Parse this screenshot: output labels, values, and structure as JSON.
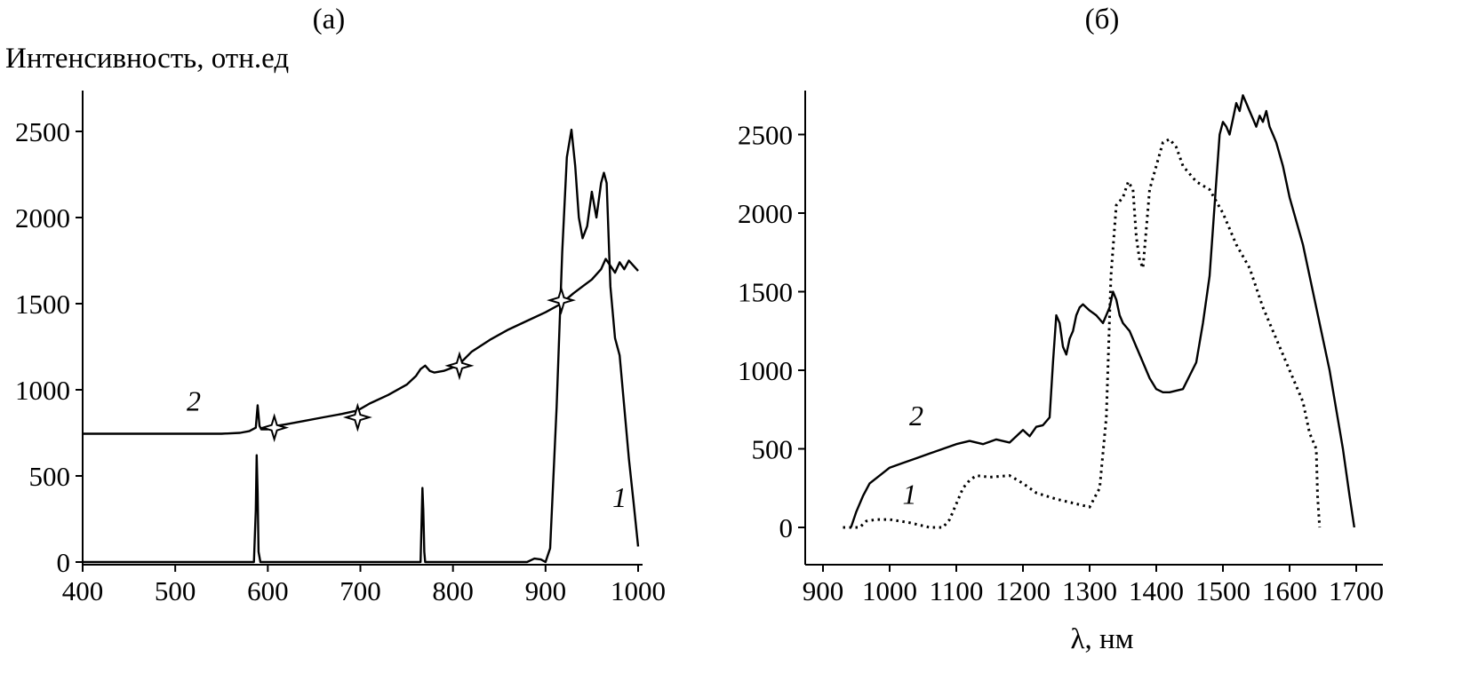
{
  "chart_data": [
    {
      "type": "line",
      "panel_label": "(а)",
      "ylabel": "Интенсивность, отн.ед",
      "xlabel": "",
      "xlim": [
        400,
        1000
      ],
      "ylim": [
        0,
        2750
      ],
      "xticks": [
        "400",
        "500",
        "600",
        "700",
        "800",
        "900",
        "1000"
      ],
      "yticks": [
        "0",
        "500",
        "1000",
        "1500",
        "2000",
        "2500"
      ],
      "series": [
        {
          "name": "1",
          "style": "solid",
          "label_at": [
            980,
            320
          ],
          "x": [
            400,
            585,
            587,
            588,
            589,
            590,
            592,
            765,
            766,
            767,
            768,
            769,
            770,
            880,
            888,
            895,
            900,
            905,
            912,
            918,
            923,
            928,
            932,
            936,
            940,
            945,
            950,
            955,
            960,
            963,
            966,
            970,
            975,
            980,
            985,
            990,
            995,
            1000
          ],
          "y": [
            0,
            0,
            300,
            620,
            400,
            60,
            0,
            0,
            220,
            430,
            300,
            60,
            0,
            0,
            20,
            15,
            0,
            80,
            900,
            1800,
            2350,
            2510,
            2300,
            2000,
            1880,
            1950,
            2150,
            2000,
            2200,
            2260,
            2200,
            1600,
            1300,
            1200,
            900,
            600,
            350,
            90
          ]
        },
        {
          "name": "2",
          "style": "solid",
          "label_at": [
            520,
            880
          ],
          "markers_x": [
            607,
            697,
            807,
            917
          ],
          "markers_y": [
            780,
            840,
            1140,
            1520
          ],
          "x": [
            400,
            450,
            500,
            550,
            570,
            580,
            587,
            589,
            591,
            593,
            600,
            605,
            607,
            609,
            620,
            640,
            660,
            680,
            697,
            710,
            730,
            750,
            760,
            765,
            770,
            775,
            780,
            790,
            800,
            807,
            820,
            840,
            860,
            880,
            900,
            917,
            930,
            940,
            950,
            960,
            965,
            970,
            975,
            980,
            985,
            990,
            995,
            1000
          ],
          "y": [
            745,
            745,
            745,
            745,
            750,
            760,
            780,
            910,
            790,
            770,
            770,
            790,
            820,
            790,
            800,
            820,
            840,
            860,
            880,
            920,
            970,
            1030,
            1080,
            1120,
            1140,
            1110,
            1100,
            1110,
            1130,
            1150,
            1220,
            1290,
            1350,
            1400,
            1450,
            1500,
            1560,
            1600,
            1640,
            1700,
            1760,
            1720,
            1680,
            1740,
            1700,
            1750,
            1720,
            1690
          ]
        }
      ]
    },
    {
      "type": "line",
      "panel_label": "(б)",
      "xlabel": "λ, нм",
      "ylabel": "",
      "xlim": [
        850,
        1700
      ],
      "ylim": [
        -250,
        2750
      ],
      "xticks": [
        "900",
        "1000",
        "1100",
        "1200",
        "1300",
        "1400",
        "1500",
        "1600",
        "1700"
      ],
      "yticks": [
        "0",
        "500",
        "1000",
        "1500",
        "2000",
        "2500"
      ],
      "series": [
        {
          "name": "1",
          "style": "dotted",
          "label_at": [
            1030,
            150
          ],
          "x": [
            930,
            945,
            955,
            965,
            980,
            1000,
            1030,
            1060,
            1080,
            1090,
            1100,
            1110,
            1120,
            1130,
            1150,
            1180,
            1200,
            1220,
            1250,
            1280,
            1300,
            1315,
            1325,
            1332,
            1340,
            1350,
            1358,
            1365,
            1370,
            1375,
            1380,
            1385,
            1390,
            1400,
            1410,
            1420,
            1430,
            1440,
            1460,
            1480,
            1500,
            1520,
            1540,
            1560,
            1580,
            1600,
            1620,
            1630,
            1640,
            1642,
            1645
          ],
          "y": [
            0,
            0,
            0,
            40,
            50,
            50,
            30,
            0,
            0,
            50,
            150,
            250,
            300,
            330,
            320,
            330,
            280,
            220,
            180,
            150,
            130,
            250,
            700,
            1600,
            2050,
            2100,
            2200,
            2150,
            1850,
            1700,
            1650,
            1900,
            2150,
            2300,
            2450,
            2470,
            2420,
            2300,
            2200,
            2150,
            2000,
            1800,
            1650,
            1400,
            1200,
            1000,
            800,
            600,
            500,
            200,
            0
          ]
        },
        {
          "name": "2",
          "style": "solid",
          "label_at": [
            1040,
            650
          ],
          "x": [
            942,
            950,
            960,
            970,
            985,
            1000,
            1020,
            1040,
            1060,
            1080,
            1100,
            1120,
            1140,
            1160,
            1180,
            1200,
            1210,
            1220,
            1230,
            1240,
            1245,
            1250,
            1255,
            1260,
            1265,
            1270,
            1275,
            1280,
            1285,
            1290,
            1300,
            1310,
            1320,
            1330,
            1335,
            1340,
            1345,
            1350,
            1360,
            1370,
            1380,
            1390,
            1400,
            1410,
            1420,
            1440,
            1460,
            1470,
            1480,
            1490,
            1495,
            1500,
            1505,
            1510,
            1515,
            1520,
            1525,
            1530,
            1535,
            1540,
            1545,
            1550,
            1555,
            1560,
            1565,
            1570,
            1575,
            1580,
            1590,
            1600,
            1620,
            1640,
            1660,
            1670,
            1680,
            1690,
            1697
          ],
          "y": [
            0,
            100,
            200,
            280,
            330,
            380,
            410,
            440,
            470,
            500,
            530,
            550,
            530,
            560,
            540,
            620,
            580,
            640,
            650,
            700,
            1050,
            1350,
            1300,
            1150,
            1100,
            1200,
            1250,
            1350,
            1400,
            1420,
            1380,
            1350,
            1300,
            1400,
            1500,
            1450,
            1350,
            1300,
            1250,
            1150,
            1050,
            950,
            880,
            860,
            860,
            880,
            1050,
            1300,
            1600,
            2200,
            2500,
            2580,
            2550,
            2500,
            2600,
            2700,
            2650,
            2750,
            2700,
            2650,
            2600,
            2550,
            2620,
            2580,
            2650,
            2550,
            2500,
            2450,
            2300,
            2100,
            1800,
            1400,
            1000,
            750,
            500,
            200,
            0
          ]
        }
      ]
    }
  ]
}
